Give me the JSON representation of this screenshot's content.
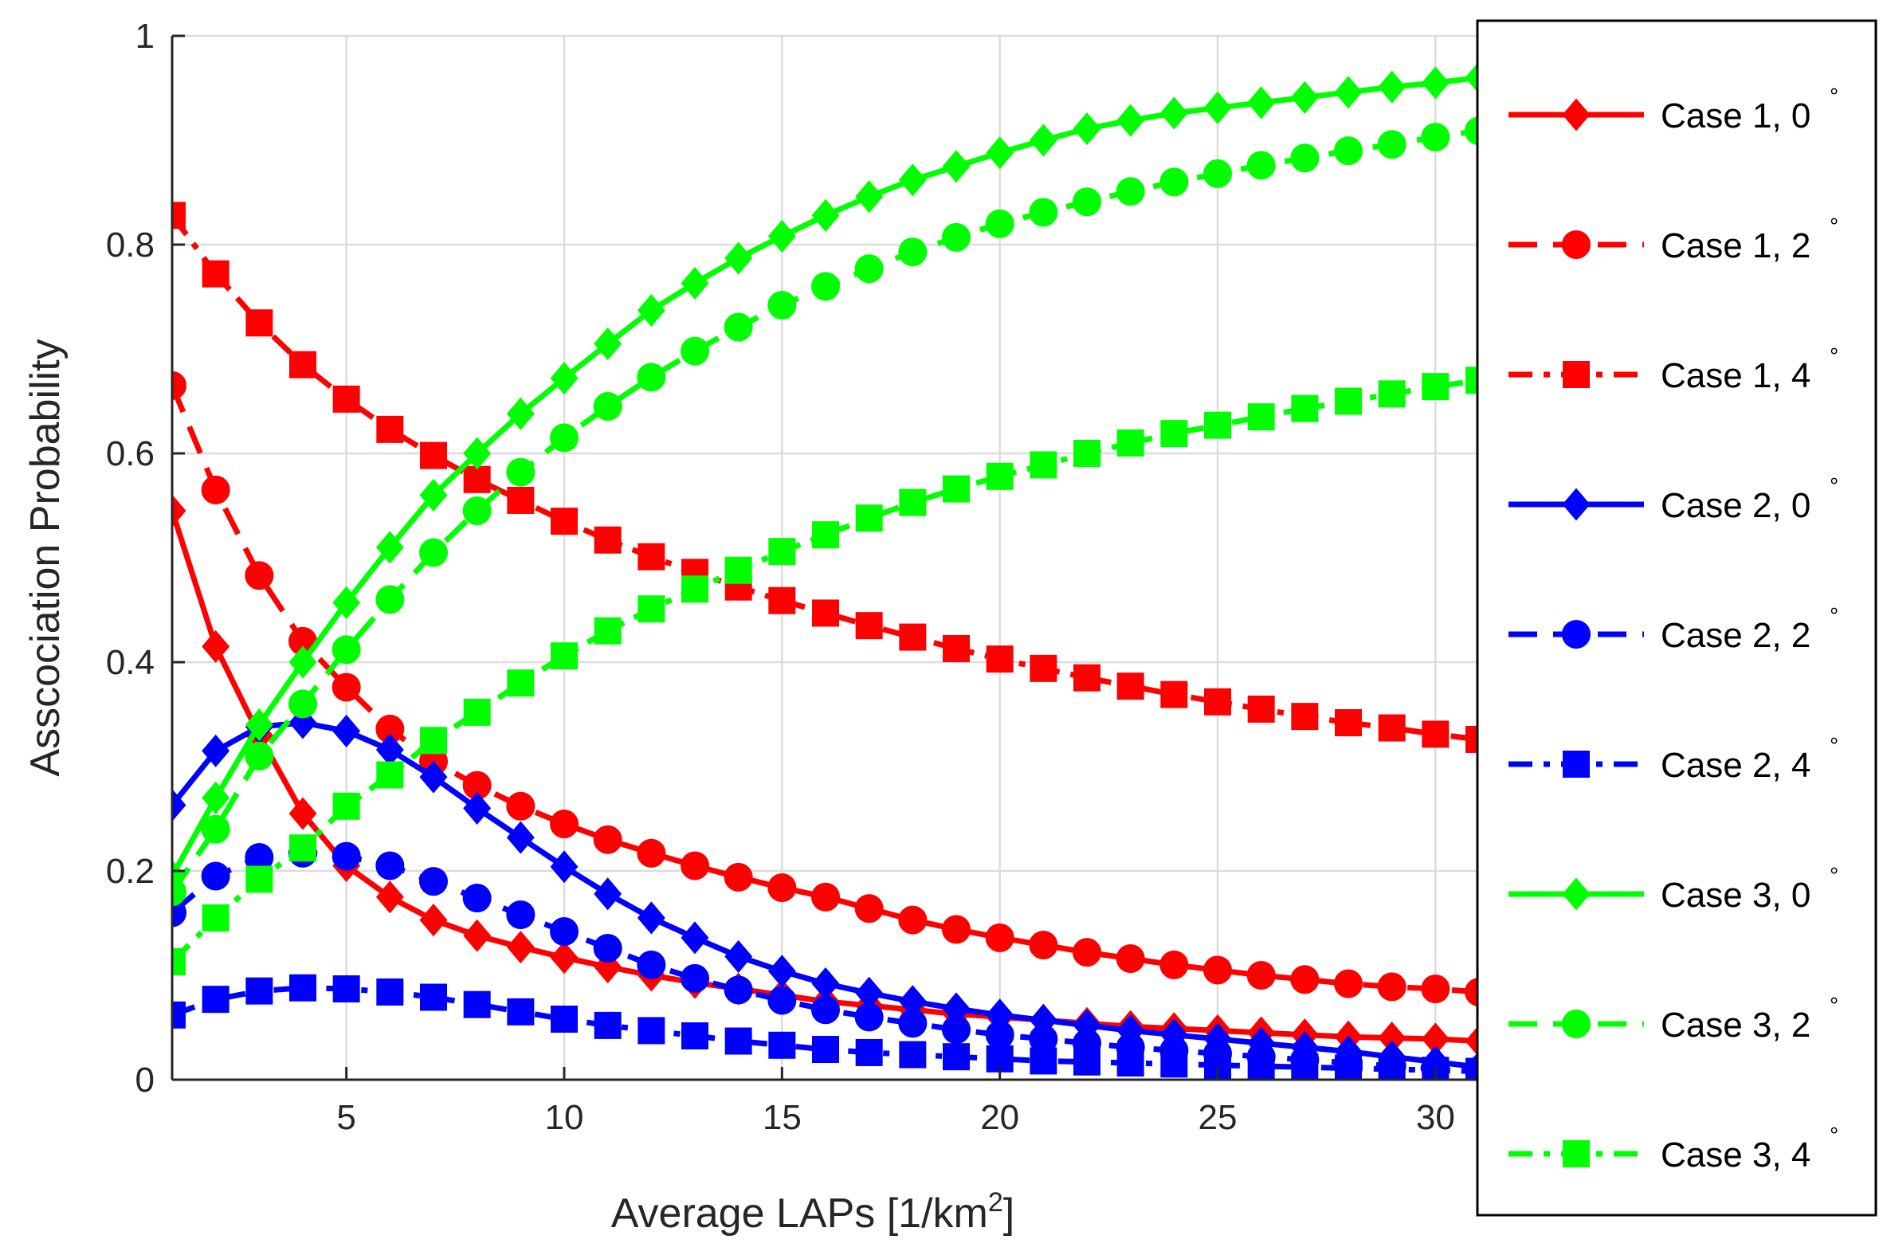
{
  "chart_data": {
    "type": "line",
    "xlabel": "Average LAPs [1/km",
    "xlabel_superscript": "2",
    "xlabel_suffix": "]",
    "ylabel": "Asscociation Probability",
    "xlim": [
      1,
      31
    ],
    "ylim": [
      0,
      1
    ],
    "xticks": [
      5,
      10,
      15,
      20,
      25,
      30
    ],
    "yticks": [
      0,
      0.2,
      0.4,
      0.6,
      0.8,
      1
    ],
    "ytick_labels": [
      "0",
      "0.2",
      "0.4",
      "0.6",
      "0.8",
      "1"
    ],
    "xtick_labels": [
      "5",
      "10",
      "15",
      "20",
      "25",
      "30"
    ],
    "grid": true,
    "legend_position": "right-outside",
    "x": [
      1,
      2,
      3,
      4,
      5,
      6,
      7,
      8,
      9,
      10,
      11,
      12,
      13,
      14,
      15,
      16,
      17,
      18,
      19,
      20,
      21,
      22,
      23,
      24,
      25,
      26,
      27,
      28,
      29,
      30,
      31
    ],
    "series": [
      {
        "name": "Case 1, 0",
        "unit": "°",
        "color": "#ff0000",
        "dash": "solid",
        "marker": "diamond",
        "values": [
          0.545,
          0.415,
          0.33,
          0.255,
          0.205,
          0.175,
          0.153,
          0.138,
          0.127,
          0.117,
          0.108,
          0.1,
          0.093,
          0.087,
          0.081,
          0.075,
          0.071,
          0.067,
          0.063,
          0.06,
          0.057,
          0.054,
          0.051,
          0.049,
          0.047,
          0.045,
          0.043,
          0.041,
          0.04,
          0.039,
          0.037
        ]
      },
      {
        "name": "Case 1, 2",
        "unit": "°",
        "color": "#ff0000",
        "dash": "dashed",
        "marker": "circle",
        "values": [
          0.665,
          0.565,
          0.483,
          0.42,
          0.376,
          0.336,
          0.305,
          0.282,
          0.262,
          0.245,
          0.23,
          0.217,
          0.205,
          0.194,
          0.184,
          0.175,
          0.164,
          0.153,
          0.144,
          0.136,
          0.129,
          0.122,
          0.116,
          0.11,
          0.105,
          0.1,
          0.096,
          0.092,
          0.089,
          0.087,
          0.084
        ]
      },
      {
        "name": "Case 1, 4",
        "unit": "°",
        "color": "#ff0000",
        "dash": "dashdot",
        "marker": "square",
        "values": [
          0.828,
          0.772,
          0.725,
          0.685,
          0.652,
          0.623,
          0.598,
          0.575,
          0.555,
          0.535,
          0.517,
          0.501,
          0.486,
          0.472,
          0.459,
          0.447,
          0.435,
          0.424,
          0.413,
          0.403,
          0.394,
          0.385,
          0.377,
          0.369,
          0.362,
          0.355,
          0.348,
          0.342,
          0.337,
          0.331,
          0.326
        ]
      },
      {
        "name": "Case 2, 0",
        "unit": "°",
        "color": "#0000ff",
        "dash": "solid",
        "marker": "diamond",
        "values": [
          0.263,
          0.315,
          0.338,
          0.342,
          0.334,
          0.316,
          0.29,
          0.26,
          0.232,
          0.204,
          0.178,
          0.155,
          0.136,
          0.118,
          0.104,
          0.092,
          0.083,
          0.075,
          0.068,
          0.062,
          0.057,
          0.052,
          0.047,
          0.043,
          0.039,
          0.035,
          0.031,
          0.027,
          0.022,
          0.017,
          0.012
        ]
      },
      {
        "name": "Case 2, 2",
        "unit": "°",
        "color": "#0000ff",
        "dash": "dashed",
        "marker": "circle",
        "values": [
          0.16,
          0.195,
          0.213,
          0.217,
          0.214,
          0.205,
          0.19,
          0.174,
          0.158,
          0.142,
          0.126,
          0.11,
          0.097,
          0.086,
          0.076,
          0.067,
          0.06,
          0.054,
          0.048,
          0.043,
          0.039,
          0.035,
          0.031,
          0.028,
          0.025,
          0.022,
          0.019,
          0.016,
          0.013,
          0.011,
          0.009
        ]
      },
      {
        "name": "Case 2, 4",
        "unit": "°",
        "color": "#0000ff",
        "dash": "dashdot",
        "marker": "square",
        "values": [
          0.062,
          0.077,
          0.085,
          0.088,
          0.087,
          0.084,
          0.079,
          0.072,
          0.065,
          0.058,
          0.052,
          0.047,
          0.042,
          0.037,
          0.033,
          0.029,
          0.026,
          0.024,
          0.022,
          0.02,
          0.018,
          0.017,
          0.016,
          0.015,
          0.014,
          0.013,
          0.012,
          0.011,
          0.01,
          0.009,
          0.008
        ]
      },
      {
        "name": "Case 3, 0",
        "unit": "°",
        "color": "#00ff00",
        "dash": "solid",
        "marker": "diamond",
        "values": [
          0.195,
          0.27,
          0.34,
          0.4,
          0.457,
          0.51,
          0.56,
          0.6,
          0.638,
          0.672,
          0.705,
          0.737,
          0.763,
          0.787,
          0.808,
          0.828,
          0.846,
          0.862,
          0.875,
          0.888,
          0.9,
          0.911,
          0.919,
          0.926,
          0.931,
          0.936,
          0.941,
          0.946,
          0.951,
          0.955,
          0.96
        ]
      },
      {
        "name": "Case 3, 2",
        "unit": "°",
        "color": "#00ff00",
        "dash": "dashed",
        "marker": "circle",
        "values": [
          0.18,
          0.24,
          0.31,
          0.36,
          0.412,
          0.46,
          0.505,
          0.545,
          0.582,
          0.615,
          0.645,
          0.673,
          0.698,
          0.721,
          0.742,
          0.76,
          0.777,
          0.793,
          0.807,
          0.82,
          0.831,
          0.841,
          0.851,
          0.86,
          0.868,
          0.876,
          0.883,
          0.89,
          0.896,
          0.903,
          0.909
        ]
      },
      {
        "name": "Case 3, 4",
        "unit": "°",
        "color": "#00ff00",
        "dash": "dashdot",
        "marker": "square",
        "values": [
          0.113,
          0.155,
          0.192,
          0.222,
          0.262,
          0.292,
          0.325,
          0.352,
          0.38,
          0.406,
          0.43,
          0.451,
          0.47,
          0.488,
          0.506,
          0.522,
          0.538,
          0.553,
          0.566,
          0.578,
          0.589,
          0.6,
          0.61,
          0.619,
          0.627,
          0.635,
          0.643,
          0.65,
          0.657,
          0.664,
          0.67
        ]
      }
    ]
  }
}
